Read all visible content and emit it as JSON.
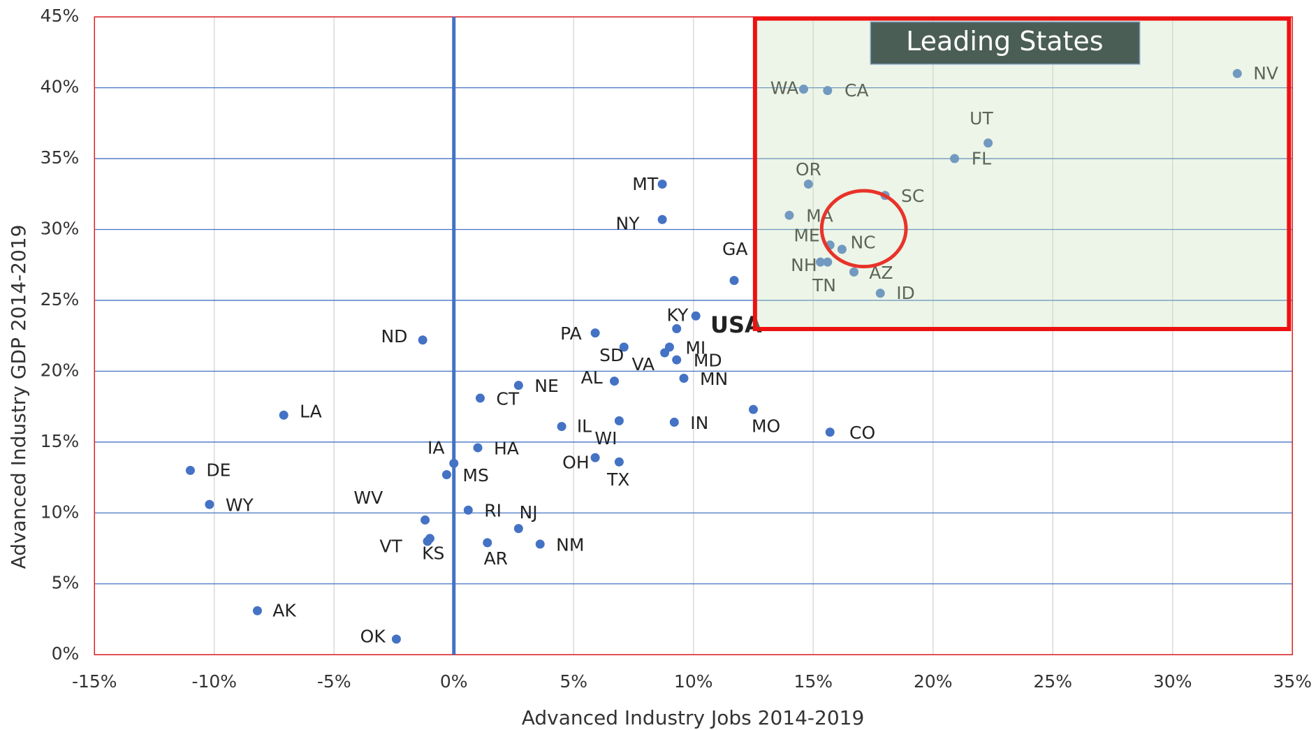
{
  "chart_data": {
    "type": "scatter",
    "xlabel": "Advanced Industry Jobs 2014-2019",
    "ylabel": "Advanced Industry GDP 2014-2019",
    "annotation": "Leading States",
    "color": "#4472c4",
    "point_labels": [
      "NV",
      "WA",
      "CA",
      "UT",
      "FL",
      "OR",
      "SC",
      "MA",
      "ME",
      "NC",
      "NH",
      "TN",
      "AZ",
      "ID",
      "MT",
      "NY",
      "GA",
      "KY",
      "USA",
      "PA",
      "SD",
      "MI",
      "VA",
      "MD",
      "MN",
      "AL",
      "NE",
      "CT",
      "ND",
      "LA",
      "MO",
      "IN",
      "IL",
      "WI",
      "CO",
      "HA",
      "IA",
      "OH",
      "TX",
      "MS",
      "DE",
      "WY",
      "RI",
      "NJ",
      "WV",
      "VT",
      "KS",
      "AR",
      "NM",
      "AK",
      "OK"
    ],
    "x": [
      32.7,
      14.6,
      15.6,
      22.3,
      20.9,
      14.8,
      18.0,
      14.0,
      15.7,
      16.2,
      15.3,
      15.6,
      16.7,
      17.8,
      8.7,
      8.7,
      11.7,
      10.1,
      9.3,
      5.9,
      7.1,
      9.0,
      8.8,
      9.3,
      9.6,
      6.7,
      2.7,
      1.1,
      -1.3,
      -7.1,
      12.5,
      9.2,
      4.5,
      6.9,
      15.7,
      1.0,
      0.0,
      5.9,
      6.9,
      -0.3,
      -11.0,
      -10.2,
      0.6,
      2.7,
      -1.2,
      -1.1,
      -1.0,
      1.4,
      3.6,
      -8.2,
      -2.4
    ],
    "values": [
      41.0,
      39.9,
      39.8,
      36.1,
      35.0,
      33.2,
      32.4,
      31.0,
      28.9,
      28.6,
      27.7,
      27.7,
      27.0,
      25.5,
      33.2,
      30.7,
      26.4,
      23.9,
      23.0,
      22.7,
      21.7,
      21.7,
      21.3,
      20.8,
      19.5,
      19.3,
      19.0,
      18.1,
      22.2,
      16.9,
      17.3,
      16.4,
      16.1,
      16.5,
      15.7,
      14.6,
      13.5,
      13.9,
      13.6,
      12.7,
      13.0,
      10.6,
      10.2,
      8.9,
      9.5,
      8.0,
      8.2,
      7.9,
      7.8,
      3.1,
      1.1
    ],
    "xlim": [
      -15,
      35
    ],
    "xticks": [
      {
        "value": -15,
        "label": "-15%"
      },
      {
        "value": -10,
        "label": "-10%"
      },
      {
        "value": -5,
        "label": "-5%"
      },
      {
        "value": 0,
        "label": "0%"
      },
      {
        "value": 5,
        "label": "5%"
      },
      {
        "value": 10,
        "label": "10%"
      },
      {
        "value": 15,
        "label": "15%"
      },
      {
        "value": 20,
        "label": "20%"
      },
      {
        "value": 25,
        "label": "25%"
      },
      {
        "value": 30,
        "label": "30%"
      },
      {
        "value": 35,
        "label": "35%"
      }
    ],
    "ylim": [
      0,
      45
    ],
    "yticks": [
      {
        "value": 0,
        "label": "0%"
      },
      {
        "value": 5,
        "label": "5%"
      },
      {
        "value": 10,
        "label": "10%"
      },
      {
        "value": 15,
        "label": "15%"
      },
      {
        "value": 20,
        "label": "20%"
      },
      {
        "value": 25,
        "label": "25%"
      },
      {
        "value": 30,
        "label": "30%"
      },
      {
        "value": 35,
        "label": "35%"
      },
      {
        "value": 40,
        "label": "40%"
      },
      {
        "value": 45,
        "label": "45%"
      }
    ],
    "grid": true
  }
}
